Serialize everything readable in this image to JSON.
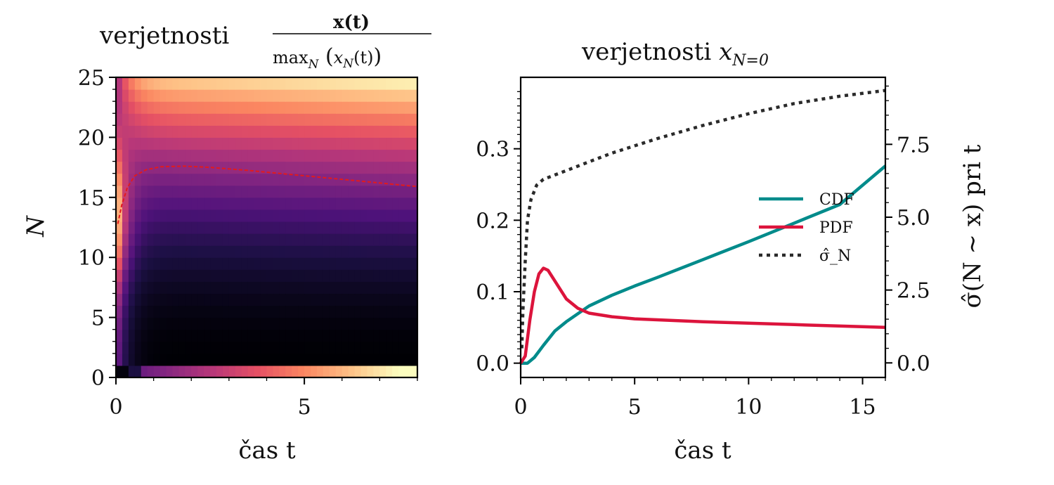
{
  "chart_data": [
    {
      "type": "heatmap",
      "title": "verjetnosti",
      "title_math": {
        "numerator": "x(t)",
        "denominator": "max",
        "denominator_sub": "N",
        "denominator_arg": "x",
        "denominator_arg_sub": "N",
        "denominator_arg_var": "(t)"
      },
      "xlabel": "čas t",
      "ylabel": "N",
      "xlim": [
        0,
        8
      ],
      "ylim": [
        0,
        25
      ],
      "xticks": [
        "0",
        "5"
      ],
      "yticks": [
        "0",
        "5",
        "10",
        "15",
        "20",
        "25"
      ],
      "colormap": "magma",
      "overlay": {
        "color": "#e31a1c",
        "style": "dashed",
        "x": [
          0.05,
          0.15,
          0.3,
          0.5,
          0.8,
          1.2,
          1.8,
          2.5,
          3.5,
          4.5,
          5.5,
          6.5,
          7.5,
          8.0
        ],
        "y": [
          12.8,
          14.3,
          15.8,
          16.8,
          17.3,
          17.55,
          17.6,
          17.5,
          17.25,
          16.95,
          16.65,
          16.35,
          16.05,
          15.9
        ]
      }
    },
    {
      "type": "line",
      "title": "verjetnosti",
      "title_math": {
        "var": "x",
        "sub": "N=0"
      },
      "xlabel": "čas t",
      "ylabel_right": "σ̂(N ∼ x) pri t",
      "xlim": [
        0,
        16
      ],
      "ylim": [
        -0.02,
        0.4
      ],
      "ylim_right": [
        -0.5,
        9.8
      ],
      "xticks": [
        "0",
        "5",
        "10",
        "15"
      ],
      "yticks": [
        "0.0",
        "0.1",
        "0.2",
        "0.3"
      ],
      "yticks_right": [
        "0.0",
        "2.5",
        "5.0",
        "7.5"
      ],
      "legend_position": "right",
      "series": [
        {
          "name": "CDF",
          "color": "#008b8b",
          "style": "solid",
          "axis": "left",
          "x": [
            0,
            0.3,
            0.6,
            1,
            1.5,
            2,
            3,
            4,
            5,
            6,
            8,
            10,
            12,
            14,
            16
          ],
          "y": [
            0,
            0,
            0.008,
            0.025,
            0.045,
            0.058,
            0.08,
            0.095,
            0.108,
            0.12,
            0.145,
            0.17,
            0.196,
            0.222,
            0.276
          ]
        },
        {
          "name": "PDF",
          "color": "#dc143c",
          "style": "solid",
          "axis": "left",
          "x": [
            0,
            0.2,
            0.4,
            0.6,
            0.8,
            1,
            1.2,
            1.5,
            2,
            2.5,
            3,
            4,
            5,
            8,
            12,
            16
          ],
          "y": [
            0,
            0.01,
            0.06,
            0.1,
            0.125,
            0.133,
            0.13,
            0.115,
            0.09,
            0.077,
            0.07,
            0.065,
            0.062,
            0.058,
            0.054,
            0.05
          ]
        },
        {
          "name": "σ̂_N",
          "color": "#2a2a2a",
          "style": "dotted",
          "axis": "right",
          "x": [
            0.05,
            0.1,
            0.2,
            0.3,
            0.45,
            0.7,
            1,
            2,
            3,
            4,
            6,
            8,
            10,
            12,
            14,
            16
          ],
          "y": [
            0.5,
            1.8,
            3.5,
            4.9,
            5.6,
            6.1,
            6.3,
            6.6,
            6.9,
            7.2,
            7.7,
            8.15,
            8.55,
            8.9,
            9.15,
            9.35
          ]
        }
      ]
    }
  ]
}
